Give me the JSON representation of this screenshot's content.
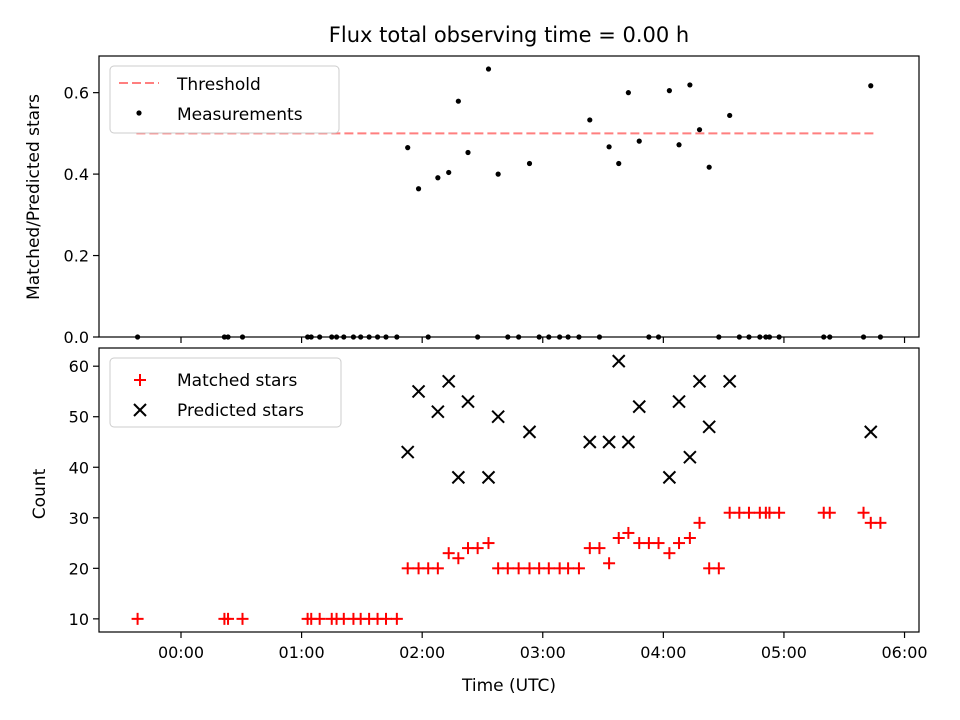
{
  "chart_data": [
    {
      "type": "scatter",
      "title": "Flux total observing time = 0.00 h",
      "xlabel": "",
      "ylabel": "Matched/Predicted stars",
      "xlim": [
        -0.68,
        6.12
      ],
      "ylim": [
        0,
        0.69
      ],
      "yticks": [
        0.0,
        0.2,
        0.4,
        0.6
      ],
      "ytick_labels": [
        "0.0",
        "0.2",
        "0.4",
        "0.6"
      ],
      "xticks": [
        0,
        1,
        2,
        3,
        4,
        5,
        6
      ],
      "xtick_labels": [
        "",
        "",
        "",
        "",
        "",
        "",
        ""
      ],
      "legend": {
        "position": "upper-left",
        "entries": [
          "Threshold",
          "Measurements"
        ]
      },
      "threshold": {
        "name": "Threshold",
        "y": 0.5,
        "x": [
          -0.37,
          5.75
        ],
        "color": "#ff7f7f",
        "style": "dashed"
      },
      "measurements": {
        "name": "Measurements",
        "color": "#000000",
        "points": [
          [
            -0.36,
            0.0
          ],
          [
            0.36,
            0.0
          ],
          [
            0.39,
            0.0
          ],
          [
            0.51,
            0.0
          ],
          [
            1.05,
            0.0
          ],
          [
            1.08,
            0.0
          ],
          [
            1.15,
            0.0
          ],
          [
            1.25,
            0.0
          ],
          [
            1.29,
            0.0
          ],
          [
            1.35,
            0.0
          ],
          [
            1.43,
            0.0
          ],
          [
            1.49,
            0.0
          ],
          [
            1.56,
            0.0
          ],
          [
            1.63,
            0.0
          ],
          [
            1.7,
            0.0
          ],
          [
            1.79,
            0.0
          ],
          [
            1.88,
            0.465
          ],
          [
            1.97,
            0.364
          ],
          [
            2.05,
            0.0
          ],
          [
            2.13,
            0.391
          ],
          [
            2.22,
            0.404
          ],
          [
            2.3,
            0.579
          ],
          [
            2.38,
            0.453
          ],
          [
            2.46,
            0.0
          ],
          [
            2.55,
            0.658
          ],
          [
            2.63,
            0.4
          ],
          [
            2.71,
            0.0
          ],
          [
            2.8,
            0.0
          ],
          [
            2.89,
            0.426
          ],
          [
            2.97,
            0.0
          ],
          [
            3.05,
            0.0
          ],
          [
            3.14,
            0.0
          ],
          [
            3.21,
            0.0
          ],
          [
            3.3,
            0.0
          ],
          [
            3.39,
            0.533
          ],
          [
            3.47,
            0.0
          ],
          [
            3.55,
            0.467
          ],
          [
            3.63,
            0.426
          ],
          [
            3.71,
            0.6
          ],
          [
            3.8,
            0.481
          ],
          [
            3.88,
            0.0
          ],
          [
            3.96,
            0.0
          ],
          [
            4.05,
            0.605
          ],
          [
            4.13,
            0.472
          ],
          [
            4.22,
            0.619
          ],
          [
            4.3,
            0.509
          ],
          [
            4.38,
            0.417
          ],
          [
            4.46,
            0.0
          ],
          [
            4.55,
            0.544
          ],
          [
            4.63,
            0.0
          ],
          [
            4.71,
            0.0
          ],
          [
            4.8,
            0.0
          ],
          [
            4.85,
            0.0
          ],
          [
            4.88,
            0.0
          ],
          [
            4.96,
            0.0
          ],
          [
            5.33,
            0.0
          ],
          [
            5.38,
            0.0
          ],
          [
            5.66,
            0.0
          ],
          [
            5.72,
            0.617
          ],
          [
            5.8,
            0.0
          ]
        ]
      }
    },
    {
      "type": "scatter",
      "title": "",
      "xlabel": "Time (UTC)",
      "ylabel": "Count",
      "xlim": [
        -0.68,
        6.12
      ],
      "ylim": [
        7.4,
        63.6
      ],
      "yticks": [
        10,
        20,
        30,
        40,
        50,
        60
      ],
      "ytick_labels": [
        "10",
        "20",
        "30",
        "40",
        "50",
        "60"
      ],
      "xticks": [
        0,
        1,
        2,
        3,
        4,
        5,
        6
      ],
      "xtick_labels": [
        "00:00",
        "01:00",
        "02:00",
        "03:00",
        "04:00",
        "05:00",
        "06:00"
      ],
      "legend": {
        "position": "upper-left",
        "entries": [
          "Matched stars",
          "Predicted stars"
        ]
      },
      "series": [
        {
          "name": "Matched stars",
          "marker": "plus",
          "color": "#ff0000",
          "points": [
            [
              -0.36,
              10
            ],
            [
              0.36,
              10
            ],
            [
              0.39,
              10
            ],
            [
              0.51,
              10
            ],
            [
              1.05,
              10
            ],
            [
              1.08,
              10
            ],
            [
              1.15,
              10
            ],
            [
              1.25,
              10
            ],
            [
              1.29,
              10
            ],
            [
              1.35,
              10
            ],
            [
              1.43,
              10
            ],
            [
              1.49,
              10
            ],
            [
              1.56,
              10
            ],
            [
              1.63,
              10
            ],
            [
              1.7,
              10
            ],
            [
              1.79,
              10
            ],
            [
              1.88,
              20
            ],
            [
              1.97,
              20
            ],
            [
              2.05,
              20
            ],
            [
              2.13,
              20
            ],
            [
              2.22,
              23
            ],
            [
              2.3,
              22
            ],
            [
              2.38,
              24
            ],
            [
              2.46,
              24
            ],
            [
              2.55,
              25
            ],
            [
              2.63,
              20
            ],
            [
              2.71,
              20
            ],
            [
              2.8,
              20
            ],
            [
              2.89,
              20
            ],
            [
              2.97,
              20
            ],
            [
              3.05,
              20
            ],
            [
              3.14,
              20
            ],
            [
              3.21,
              20
            ],
            [
              3.3,
              20
            ],
            [
              3.39,
              24
            ],
            [
              3.47,
              24
            ],
            [
              3.55,
              21
            ],
            [
              3.63,
              26
            ],
            [
              3.71,
              27
            ],
            [
              3.8,
              25
            ],
            [
              3.88,
              25
            ],
            [
              3.96,
              25
            ],
            [
              4.05,
              23
            ],
            [
              4.13,
              25
            ],
            [
              4.22,
              26
            ],
            [
              4.3,
              29
            ],
            [
              4.38,
              20
            ],
            [
              4.46,
              20
            ],
            [
              4.55,
              31
            ],
            [
              4.63,
              31
            ],
            [
              4.71,
              31
            ],
            [
              4.8,
              31
            ],
            [
              4.85,
              31
            ],
            [
              4.88,
              31
            ],
            [
              4.96,
              31
            ],
            [
              5.33,
              31
            ],
            [
              5.38,
              31
            ],
            [
              5.66,
              31
            ],
            [
              5.72,
              29
            ],
            [
              5.8,
              29
            ]
          ]
        },
        {
          "name": "Predicted stars",
          "marker": "x",
          "color": "#000000",
          "points": [
            [
              1.88,
              43
            ],
            [
              1.97,
              55
            ],
            [
              2.13,
              51
            ],
            [
              2.22,
              57
            ],
            [
              2.3,
              38
            ],
            [
              2.38,
              53
            ],
            [
              2.55,
              38
            ],
            [
              2.63,
              50
            ],
            [
              2.89,
              47
            ],
            [
              3.39,
              45
            ],
            [
              3.55,
              45
            ],
            [
              3.63,
              61
            ],
            [
              3.71,
              45
            ],
            [
              3.8,
              52
            ],
            [
              4.05,
              38
            ],
            [
              4.13,
              53
            ],
            [
              4.22,
              42
            ],
            [
              4.3,
              57
            ],
            [
              4.38,
              48
            ],
            [
              4.55,
              57
            ],
            [
              5.72,
              47
            ]
          ]
        }
      ]
    }
  ]
}
